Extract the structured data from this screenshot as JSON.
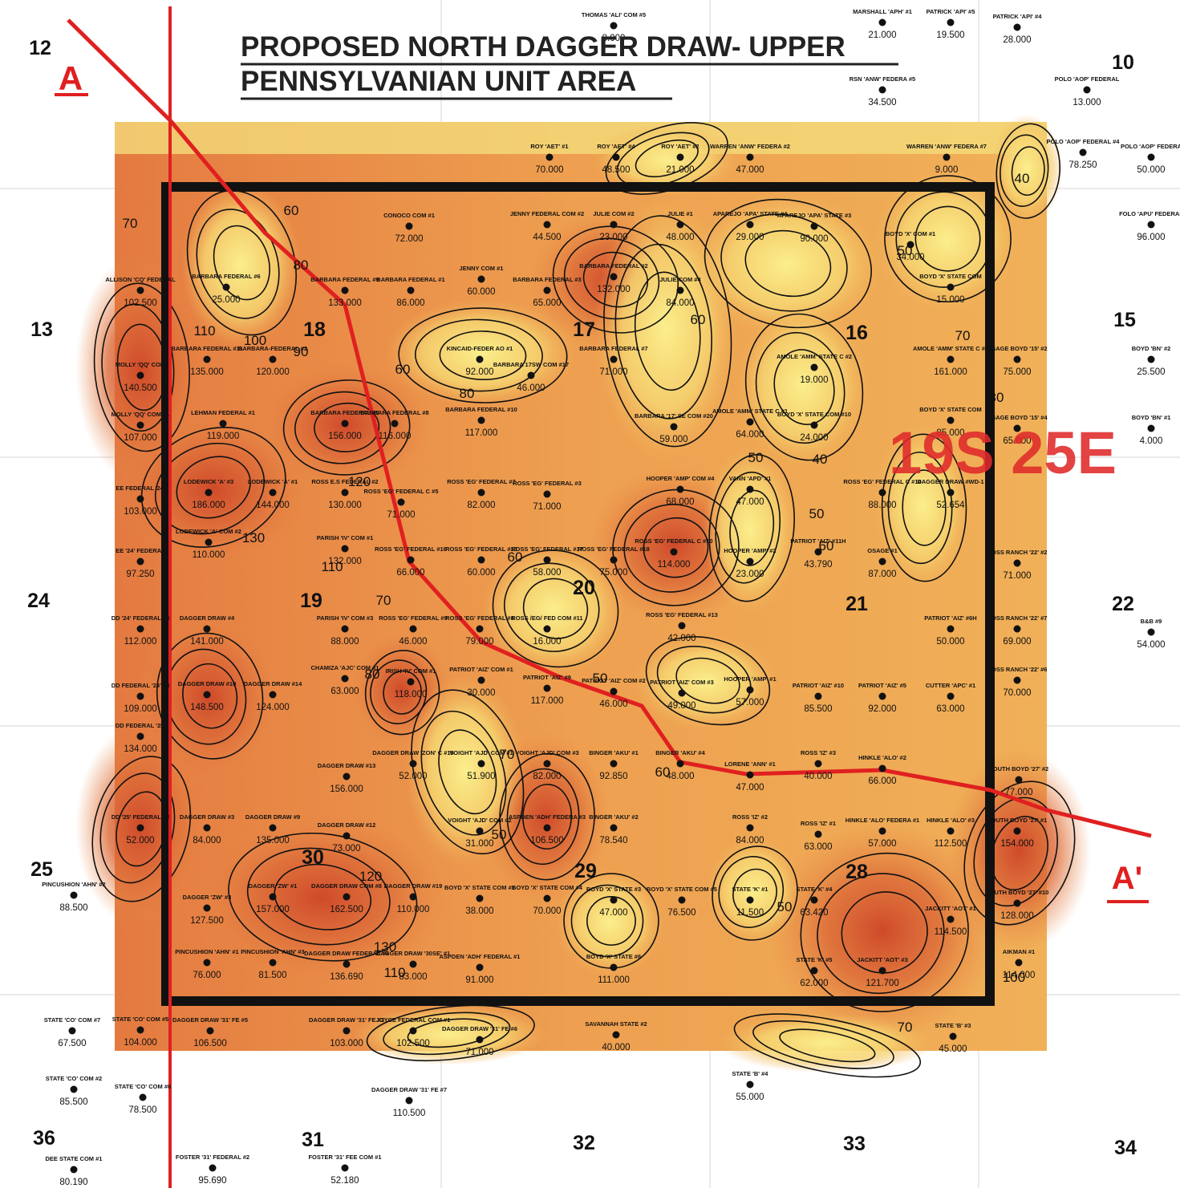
{
  "title_lines": [
    "PROPOSED NORTH DAGGER DRAW- UPPER",
    "PENNSYLVANIAN UNIT AREA"
  ],
  "township": "19S 25E",
  "cross_section": {
    "start": "A",
    "end": "A'"
  },
  "sections": [
    "12",
    "10",
    "13",
    "18",
    "17",
    "16",
    "15",
    "24",
    "19",
    "20",
    "21",
    "22",
    "25",
    "30",
    "29",
    "28",
    "36",
    "31",
    "32",
    "33",
    "34"
  ],
  "contour_labels": [
    "70",
    "60",
    "80",
    "110",
    "100",
    "90",
    "60",
    "80",
    "120",
    "130",
    "110",
    "70",
    "60",
    "80",
    "50",
    "70",
    "60",
    "50",
    "120",
    "130",
    "110",
    "50",
    "70",
    "100",
    "40",
    "50",
    "50",
    "60",
    "60",
    "70",
    "80",
    "50",
    "40"
  ],
  "wells": [
    {
      "name": "THOMAS 'ALI' COM #5",
      "value": "8.000"
    },
    {
      "name": "MARSHALL 'APH' #1",
      "value": "21.000"
    },
    {
      "name": "PATRICK 'API' #5",
      "value": "19.500"
    },
    {
      "name": "PATRICK 'API' #4",
      "value": "28.000"
    },
    {
      "name": "RSN 'ANW' FEDERA #5",
      "value": "34.500"
    },
    {
      "name": "POLO 'AOP' FEDERAL",
      "value": "13.000"
    },
    {
      "name": "ROY 'AET' #1",
      "value": "70.000"
    },
    {
      "name": "ROY 'AET' #4",
      "value": "48.500"
    },
    {
      "name": "ROY 'AET' #2",
      "value": "21.000"
    },
    {
      "name": "WARREN 'ANW' FEDERA #2",
      "value": "47.000"
    },
    {
      "name": "WARREN 'ANW' FEDERA #7",
      "value": "9.000"
    },
    {
      "name": "POLO 'AOP' FEDERAL #4",
      "value": "78.250"
    },
    {
      "name": "POLO 'AOP' FEDERA",
      "value": "50.000"
    },
    {
      "name": "CONOCO COM #1",
      "value": "72.000"
    },
    {
      "name": "JENNY FEDERAL COM #2",
      "value": "44.500"
    },
    {
      "name": "JULIE COM #2",
      "value": "23.000"
    },
    {
      "name": "JULIE #1",
      "value": "48.000"
    },
    {
      "name": "APAREJO 'APA' STATE #4",
      "value": "29.000"
    },
    {
      "name": "APAREJO 'APA' STATE #3",
      "value": "90.000"
    },
    {
      "name": "BOYD 'X' COM #1",
      "value": "34.000"
    },
    {
      "name": "FOLO 'APU' FEDERAL",
      "value": "96.000"
    },
    {
      "name": "ALLISON 'CQ' FEDERAL",
      "value": "102.500"
    },
    {
      "name": "BARBARA FEDERAL #6",
      "value": "25.000"
    },
    {
      "name": "BARBARA FEDERAL #9",
      "value": "133.000"
    },
    {
      "name": "BARBARA FEDERAL #1",
      "value": "86.000"
    },
    {
      "name": "JENNY COM #1",
      "value": "60.000"
    },
    {
      "name": "BARBARA FEDERAL #3",
      "value": "65.000"
    },
    {
      "name": "BARBARA FEDERAL #2",
      "value": "132.000"
    },
    {
      "name": "JULIE COM #4",
      "value": "84.000"
    },
    {
      "name": "BOYD 'X' STATE COM",
      "value": "15.000"
    },
    {
      "name": "AMOLE 'AMM' STATE C #4",
      "value": "161.000"
    },
    {
      "name": "OSAGE BOYD '15' #2",
      "value": "75.000"
    },
    {
      "name": "BOYD 'BN' #2",
      "value": "25.500"
    },
    {
      "name": "AMOLE 'AMM' STATE C #2",
      "value": "19.000"
    },
    {
      "name": "BARBARA FEDERAL #7",
      "value": "71.000"
    },
    {
      "name": "BARBARA 17SW COM #17",
      "value": "46.000"
    },
    {
      "name": "KINCAID-FEDER AO #1",
      "value": "92.000"
    },
    {
      "name": "BARBARA-FEDERAL #2",
      "value": "120.000"
    },
    {
      "name": "BARBARA FEDERAL #11",
      "value": "135.000"
    },
    {
      "name": "MOLLY 'QQ' COM",
      "value": "140.500"
    },
    {
      "name": "MOLLY 'QQ' COM #1",
      "value": "107.000"
    },
    {
      "name": "LEHMAN FEDERAL #1",
      "value": "119.000"
    },
    {
      "name": "BARBARA FEDERAL #5",
      "value": "156.000"
    },
    {
      "name": "BARBARA FEDERAL #8",
      "value": "116.000"
    },
    {
      "name": "BARBARA FEDERAL #10",
      "value": "117.000"
    },
    {
      "name": "BARBARA '17' SE COM #20",
      "value": "59.000"
    },
    {
      "name": "AMOLE 'AMM' STATE C #1",
      "value": "64.000"
    },
    {
      "name": "BOYD 'X' STATE COM #10",
      "value": "24.000"
    },
    {
      "name": "BOYD 'X' STATE COM",
      "value": "85.000"
    },
    {
      "name": "OSAGE BOYD '15' #4",
      "value": "65.000"
    },
    {
      "name": "BOYD 'BN' #1",
      "value": "4.000"
    },
    {
      "name": "EE FEDERAL '24'",
      "value": "103.000"
    },
    {
      "name": "LODEWICK 'A' #3",
      "value": "186.000"
    },
    {
      "name": "LODEWICK 'A' #1",
      "value": "144.000"
    },
    {
      "name": "ROSS E.S FEDERAL #2",
      "value": "130.000"
    },
    {
      "name": "ROSS 'EG' FEDERAL C #5",
      "value": "71.000"
    },
    {
      "name": "ROSS 'EG' FEDERAL #2",
      "value": "82.000"
    },
    {
      "name": "ROSS 'EG' FEDERAL #3",
      "value": "71.000"
    },
    {
      "name": "HOOPER 'AMP' COM #4",
      "value": "68.000"
    },
    {
      "name": "VANN 'APD' #1",
      "value": "47.000"
    },
    {
      "name": "ROSS 'EG' FEDERAL C #14",
      "value": "88.000"
    },
    {
      "name": "DAGGER DRAW #WD-1",
      "value": "52.654"
    },
    {
      "name": "EE '24' FEDERAL",
      "value": "97.250"
    },
    {
      "name": "LODEWICK 'A' COM #2",
      "value": "110.000"
    },
    {
      "name": "PARISH 'IV' COM #1",
      "value": "132.000"
    },
    {
      "name": "ROSS 'EG' FEDERAL #16",
      "value": "66.000"
    },
    {
      "name": "ROSS 'EG' FEDERAL #15",
      "value": "60.000"
    },
    {
      "name": "ROSS 'EG' FEDERAL #17",
      "value": "58.000"
    },
    {
      "name": "ROSS 'EG' FEDERAL #18",
      "value": "75.000"
    },
    {
      "name": "ROSS 'EG' FEDERAL C #10",
      "value": "114.000"
    },
    {
      "name": "HOOPER 'AMP' #2",
      "value": "23.000"
    },
    {
      "name": "PATRIOT 'AIZ' #11H",
      "value": "43.790"
    },
    {
      "name": "OSAGE #1",
      "value": "87.000"
    },
    {
      "name": "ROSS RANCH '22' #2",
      "value": "71.000"
    },
    {
      "name": "DD '24' FEDERAL #4",
      "value": "112.000"
    },
    {
      "name": "DAGGER DRAW #4",
      "value": "141.000"
    },
    {
      "name": "PARISH 'IV' COM #3",
      "value": "88.000"
    },
    {
      "name": "ROSS 'EG' FEDERAL #9",
      "value": "46.000"
    },
    {
      "name": "ROSS 'EG' FEDERAL #8",
      "value": "79.000"
    },
    {
      "name": "ROSS /EG/ FED COM #11",
      "value": "16.000"
    },
    {
      "name": "ROSS 'EG' FEDERAL #13",
      "value": "42.000"
    },
    {
      "name": "PATRIOT 'AIZ' #6H",
      "value": "50.000"
    },
    {
      "name": "ROSS RANCH '22' #7",
      "value": "69.000"
    },
    {
      "name": "B&B #9",
      "value": "54.000"
    },
    {
      "name": "DD FEDERAL '24' #3",
      "value": "109.000"
    },
    {
      "name": "DAGGER DRAW #10",
      "value": "148.500"
    },
    {
      "name": "DAGGER DRAW #14",
      "value": "124.000"
    },
    {
      "name": "CHAMIZA 'AJC' COM #1",
      "value": "63.000"
    },
    {
      "name": "IRISH 'IV' COM #1",
      "value": "118.000"
    },
    {
      "name": "PATRIOT 'AIZ' COM #1",
      "value": "30.000"
    },
    {
      "name": "PATRIOT 'AIZ' #9",
      "value": "117.000"
    },
    {
      "name": "PATRIOT 'AIZ' COM #2",
      "value": "46.000"
    },
    {
      "name": "PATRIOT 'AIZ' COM #3",
      "value": "49.000"
    },
    {
      "name": "HOOPER 'AMP' #1",
      "value": "57.000"
    },
    {
      "name": "PATRIOT 'AIZ' #10",
      "value": "85.500"
    },
    {
      "name": "PATRIOT 'AIZ' #5",
      "value": "92.000"
    },
    {
      "name": "CUTTER 'APC' #1",
      "value": "63.000"
    },
    {
      "name": "ROSS RANCH '22' #6",
      "value": "70.000"
    },
    {
      "name": "DD FEDERAL '25'",
      "value": "134.000"
    },
    {
      "name": "DAGGER DRAW #13",
      "value": "156.000"
    },
    {
      "name": "DAGGER DRAW 'ZON' C #15",
      "value": "52.000"
    },
    {
      "name": "VOIGHT 'AJD' COM #1",
      "value": "51.900"
    },
    {
      "name": "VOIGHT 'AJD' COM #3",
      "value": "82.000"
    },
    {
      "name": "BINGER 'AKU' #1",
      "value": "92.850"
    },
    {
      "name": "BINGER 'AKU' #4",
      "value": "48.000"
    },
    {
      "name": "LORENE 'ANN' #1",
      "value": "47.000"
    },
    {
      "name": "ROSS 'IZ' #3",
      "value": "40.000"
    },
    {
      "name": "HINKLE 'ALO' #2",
      "value": "66.000"
    },
    {
      "name": "SOUTH BOYD '27' #2",
      "value": "77.000"
    },
    {
      "name": "DD '25' FEDERAL #2",
      "value": "52.000"
    },
    {
      "name": "DAGGER DRAW #3",
      "value": "84.000"
    },
    {
      "name": "DAGGER DRAW #9",
      "value": "135.000"
    },
    {
      "name": "DAGGER DRAW #12",
      "value": "73.000"
    },
    {
      "name": "VOIGHT 'AJD' COM #2",
      "value": "31.000"
    },
    {
      "name": "ASPDEN 'ADH' FEDERA #3",
      "value": "106.500"
    },
    {
      "name": "BINGER 'AKU' #2",
      "value": "78.540"
    },
    {
      "name": "ROSS 'IZ' #2",
      "value": "84.000"
    },
    {
      "name": "ROSS 'IZ' #1",
      "value": "63.000"
    },
    {
      "name": "HINKLE 'ALO' FEDERA #1",
      "value": "57.000"
    },
    {
      "name": "HINKLE 'ALO' #3",
      "value": "112.500"
    },
    {
      "name": "SOUTH BOYD '27' #1",
      "value": "154.000"
    },
    {
      "name": "PINCUSHION 'AHN' #2",
      "value": "88.500"
    },
    {
      "name": "DAGGER 'ZW' #3",
      "value": "127.500"
    },
    {
      "name": "DAGGER 'ZW' #1",
      "value": "157.000"
    },
    {
      "name": "DAGGER DRAW COM #8",
      "value": "162.500"
    },
    {
      "name": "DAGGER DRAW #19",
      "value": "110.000"
    },
    {
      "name": "BOYD 'X' STATE COM #1",
      "value": "38.000"
    },
    {
      "name": "BOYD 'X' STATE COM #4",
      "value": "70.000"
    },
    {
      "name": "BOYD 'X' STATE #3",
      "value": "47.000"
    },
    {
      "name": "BOYD 'X' STATE COM #5",
      "value": "76.500"
    },
    {
      "name": "STATE 'K' #1",
      "value": "11.500"
    },
    {
      "name": "STATE 'K' #4",
      "value": "63.420"
    },
    {
      "name": "JACKITT 'AOT' #1",
      "value": "114.500"
    },
    {
      "name": "SOUTH BOYD '27' #10",
      "value": "128.000"
    },
    {
      "name": "PINCUSHION 'AHN' #1",
      "value": "76.000"
    },
    {
      "name": "PINCUSHION 'AHN' #3",
      "value": "81.500"
    },
    {
      "name": "DAGGER DRAW FEDERAL #4",
      "value": "136.690"
    },
    {
      "name": "DAGGER DRAW '30SE' #1",
      "value": "83.000"
    },
    {
      "name": "ASPDEN 'ADH' FEDERAL #1",
      "value": "91.000"
    },
    {
      "name": "BOYD 'X' STATE #6",
      "value": "111.000"
    },
    {
      "name": "STATE 'K' #5",
      "value": "62.000"
    },
    {
      "name": "JACKITT 'AOT' #3",
      "value": "121.700"
    },
    {
      "name": "AIKMAN #1",
      "value": "114.000"
    },
    {
      "name": "STATE 'CO' COM #7",
      "value": "67.500"
    },
    {
      "name": "STATE 'CO' COM #5",
      "value": "104.000"
    },
    {
      "name": "DAGGER DRAW '31' FE #5",
      "value": "106.500"
    },
    {
      "name": "DAGGER DRAW '31' FE #2",
      "value": "103.000"
    },
    {
      "name": "JOYCE FEDERAL COM #1",
      "value": "102.500"
    },
    {
      "name": "DAGGER DRAW '31' FE #6",
      "value": "71.000"
    },
    {
      "name": "SAVANNAH STATE #2",
      "value": "40.000"
    },
    {
      "name": "STATE 'B' #3",
      "value": "45.000"
    },
    {
      "name": "STATE 'CO' COM #2",
      "value": "85.500"
    },
    {
      "name": "STATE 'CO' COM #6",
      "value": "78.500"
    },
    {
      "name": "DAGGER DRAW '31' FE #7",
      "value": "110.500"
    },
    {
      "name": "STATE 'B' #4",
      "value": "55.000"
    },
    {
      "name": "DEE STATE COM #1",
      "value": "80.190"
    },
    {
      "name": "FOSTER '31' FEDERAL #2",
      "value": "95.690"
    },
    {
      "name": "FOSTER '31' FEE COM #1",
      "value": "52.180"
    }
  ]
}
